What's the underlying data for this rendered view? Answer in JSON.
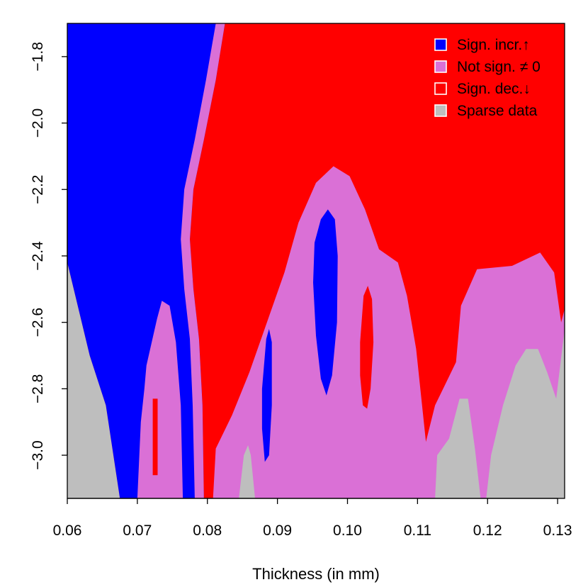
{
  "chart_data": {
    "type": "heatmap",
    "title": "",
    "xlabel": "Thickness (in mm)",
    "ylabel": "",
    "xlim": [
      0.06,
      0.131
    ],
    "ylim": [
      -3.13,
      -1.7
    ],
    "x_ticks": [
      {
        "value": 0.06,
        "label": "0.06"
      },
      {
        "value": 0.07,
        "label": "0.07"
      },
      {
        "value": 0.08,
        "label": "0.08"
      },
      {
        "value": 0.09,
        "label": "0.09"
      },
      {
        "value": 0.1,
        "label": "0.10"
      },
      {
        "value": 0.11,
        "label": "0.11"
      },
      {
        "value": 0.12,
        "label": "0.12"
      },
      {
        "value": 0.13,
        "label": "0.13"
      }
    ],
    "y_ticks": [
      {
        "value": -1.8,
        "label": "−1.8"
      },
      {
        "value": -2.0,
        "label": "−2.0"
      },
      {
        "value": -2.2,
        "label": "−2.2"
      },
      {
        "value": -2.4,
        "label": "−2.4"
      },
      {
        "value": -2.6,
        "label": "−2.6"
      },
      {
        "value": -2.8,
        "label": "−2.8"
      },
      {
        "value": -3.0,
        "label": "−3.0"
      }
    ],
    "grid": false,
    "legend_position": "top-right",
    "background_category": "sign_dec",
    "categories": [
      {
        "key": "sign_incr",
        "label": "Sign. incr.↑",
        "color": "#0000ff"
      },
      {
        "key": "not_sign",
        "label": "Not sign. ≠ 0",
        "color": "#da70d6"
      },
      {
        "key": "sign_dec",
        "label": "Sign. dec.↓",
        "color": "#ff0000"
      },
      {
        "key": "sparse",
        "label": "Sparse data",
        "color": "#bebebe"
      }
    ],
    "regions": [
      {
        "category": "sign_incr",
        "polygon": [
          [
            0.06,
            -1.7
          ],
          [
            0.0825,
            -1.7
          ],
          [
            0.0812,
            -1.87
          ],
          [
            0.0795,
            -2.05
          ],
          [
            0.078,
            -2.2
          ],
          [
            0.0775,
            -2.35
          ],
          [
            0.078,
            -2.5
          ],
          [
            0.0788,
            -2.65
          ],
          [
            0.0793,
            -2.85
          ],
          [
            0.0795,
            -3.13
          ],
          [
            0.0675,
            -3.13
          ],
          [
            0.0655,
            -2.85
          ],
          [
            0.0632,
            -2.7
          ],
          [
            0.06,
            -2.42
          ]
        ]
      },
      {
        "category": "not_sign",
        "polygon": [
          [
            0.0812,
            -1.7
          ],
          [
            0.0825,
            -1.7
          ],
          [
            0.0812,
            -1.87
          ],
          [
            0.0795,
            -2.05
          ],
          [
            0.078,
            -2.2
          ],
          [
            0.0775,
            -2.35
          ],
          [
            0.078,
            -2.5
          ],
          [
            0.0788,
            -2.65
          ],
          [
            0.0793,
            -2.85
          ],
          [
            0.0795,
            -3.13
          ],
          [
            0.0782,
            -3.13
          ],
          [
            0.0779,
            -2.85
          ],
          [
            0.0775,
            -2.65
          ],
          [
            0.0767,
            -2.5
          ],
          [
            0.0762,
            -2.35
          ],
          [
            0.0767,
            -2.2
          ],
          [
            0.0782,
            -2.05
          ],
          [
            0.0798,
            -1.87
          ]
        ]
      },
      {
        "category": "not_sign",
        "polygon": [
          [
            0.0713,
            -2.73
          ],
          [
            0.0728,
            -2.59
          ],
          [
            0.0735,
            -2.535
          ],
          [
            0.0746,
            -2.55
          ],
          [
            0.0755,
            -2.66
          ],
          [
            0.0762,
            -2.85
          ],
          [
            0.0765,
            -3.13
          ],
          [
            0.07,
            -3.13
          ],
          [
            0.0705,
            -2.9
          ],
          [
            0.071,
            -2.8
          ]
        ]
      },
      {
        "category": "sign_dec",
        "polygon": [
          [
            0.0722,
            -2.83
          ],
          [
            0.0729,
            -2.83
          ],
          [
            0.0729,
            -3.06
          ],
          [
            0.0722,
            -3.06
          ]
        ]
      },
      {
        "category": "not_sign",
        "polygon": [
          [
            0.0808,
            -3.13
          ],
          [
            0.0812,
            -2.98
          ],
          [
            0.0835,
            -2.88
          ],
          [
            0.086,
            -2.75
          ],
          [
            0.0885,
            -2.6
          ],
          [
            0.091,
            -2.45
          ],
          [
            0.093,
            -2.3
          ],
          [
            0.0955,
            -2.18
          ],
          [
            0.098,
            -2.13
          ],
          [
            0.1003,
            -2.16
          ],
          [
            0.1025,
            -2.26
          ],
          [
            0.1045,
            -2.38
          ],
          [
            0.1072,
            -2.42
          ],
          [
            0.1085,
            -2.52
          ],
          [
            0.1098,
            -2.68
          ],
          [
            0.1112,
            -2.96
          ],
          [
            0.1125,
            -2.85
          ],
          [
            0.1155,
            -2.72
          ],
          [
            0.1162,
            -2.55
          ],
          [
            0.1185,
            -2.44
          ],
          [
            0.1235,
            -2.43
          ],
          [
            0.1275,
            -2.39
          ],
          [
            0.1295,
            -2.45
          ],
          [
            0.1305,
            -2.6
          ],
          [
            0.131,
            -2.56
          ],
          [
            0.131,
            -3.13
          ]
        ]
      },
      {
        "category": "sign_incr",
        "polygon": [
          [
            0.0953,
            -2.36
          ],
          [
            0.0962,
            -2.29
          ],
          [
            0.0972,
            -2.26
          ],
          [
            0.0982,
            -2.29
          ],
          [
            0.0986,
            -2.4
          ],
          [
            0.0985,
            -2.6
          ],
          [
            0.0978,
            -2.76
          ],
          [
            0.097,
            -2.82
          ],
          [
            0.0962,
            -2.77
          ],
          [
            0.0955,
            -2.64
          ],
          [
            0.0951,
            -2.48
          ]
        ]
      },
      {
        "category": "sign_incr",
        "polygon": [
          [
            0.0878,
            -2.8
          ],
          [
            0.0884,
            -2.65
          ],
          [
            0.0888,
            -2.62
          ],
          [
            0.0892,
            -2.66
          ],
          [
            0.0892,
            -2.85
          ],
          [
            0.0888,
            -3.0
          ],
          [
            0.0882,
            -3.02
          ],
          [
            0.0878,
            -2.92
          ]
        ]
      },
      {
        "category": "sign_dec",
        "polygon": [
          [
            0.1018,
            -2.66
          ],
          [
            0.1023,
            -2.52
          ],
          [
            0.1029,
            -2.49
          ],
          [
            0.1035,
            -2.53
          ],
          [
            0.1037,
            -2.66
          ],
          [
            0.1033,
            -2.8
          ],
          [
            0.1028,
            -2.86
          ],
          [
            0.1022,
            -2.85
          ],
          [
            0.1018,
            -2.76
          ]
        ]
      },
      {
        "category": "sparse",
        "polygon": [
          [
            0.06,
            -2.42
          ],
          [
            0.0632,
            -2.7
          ],
          [
            0.0655,
            -2.85
          ],
          [
            0.0675,
            -3.13
          ],
          [
            0.06,
            -3.13
          ]
        ]
      },
      {
        "category": "sparse",
        "polygon": [
          [
            0.0845,
            -3.13
          ],
          [
            0.0852,
            -3.0
          ],
          [
            0.0858,
            -2.97
          ],
          [
            0.0862,
            -3.0
          ],
          [
            0.0868,
            -3.13
          ]
        ]
      },
      {
        "category": "sparse",
        "polygon": [
          [
            0.1125,
            -3.13
          ],
          [
            0.1128,
            -3.0
          ],
          [
            0.1145,
            -2.95
          ],
          [
            0.116,
            -2.83
          ],
          [
            0.1172,
            -2.83
          ],
          [
            0.1182,
            -2.98
          ],
          [
            0.119,
            -3.13
          ]
        ]
      },
      {
        "category": "sparse",
        "polygon": [
          [
            0.1198,
            -3.13
          ],
          [
            0.1205,
            -3.0
          ],
          [
            0.1222,
            -2.85
          ],
          [
            0.124,
            -2.73
          ],
          [
            0.1255,
            -2.68
          ],
          [
            0.1272,
            -2.68
          ],
          [
            0.1285,
            -2.75
          ],
          [
            0.1298,
            -2.83
          ],
          [
            0.131,
            -2.62
          ],
          [
            0.131,
            -3.13
          ]
        ]
      }
    ]
  }
}
